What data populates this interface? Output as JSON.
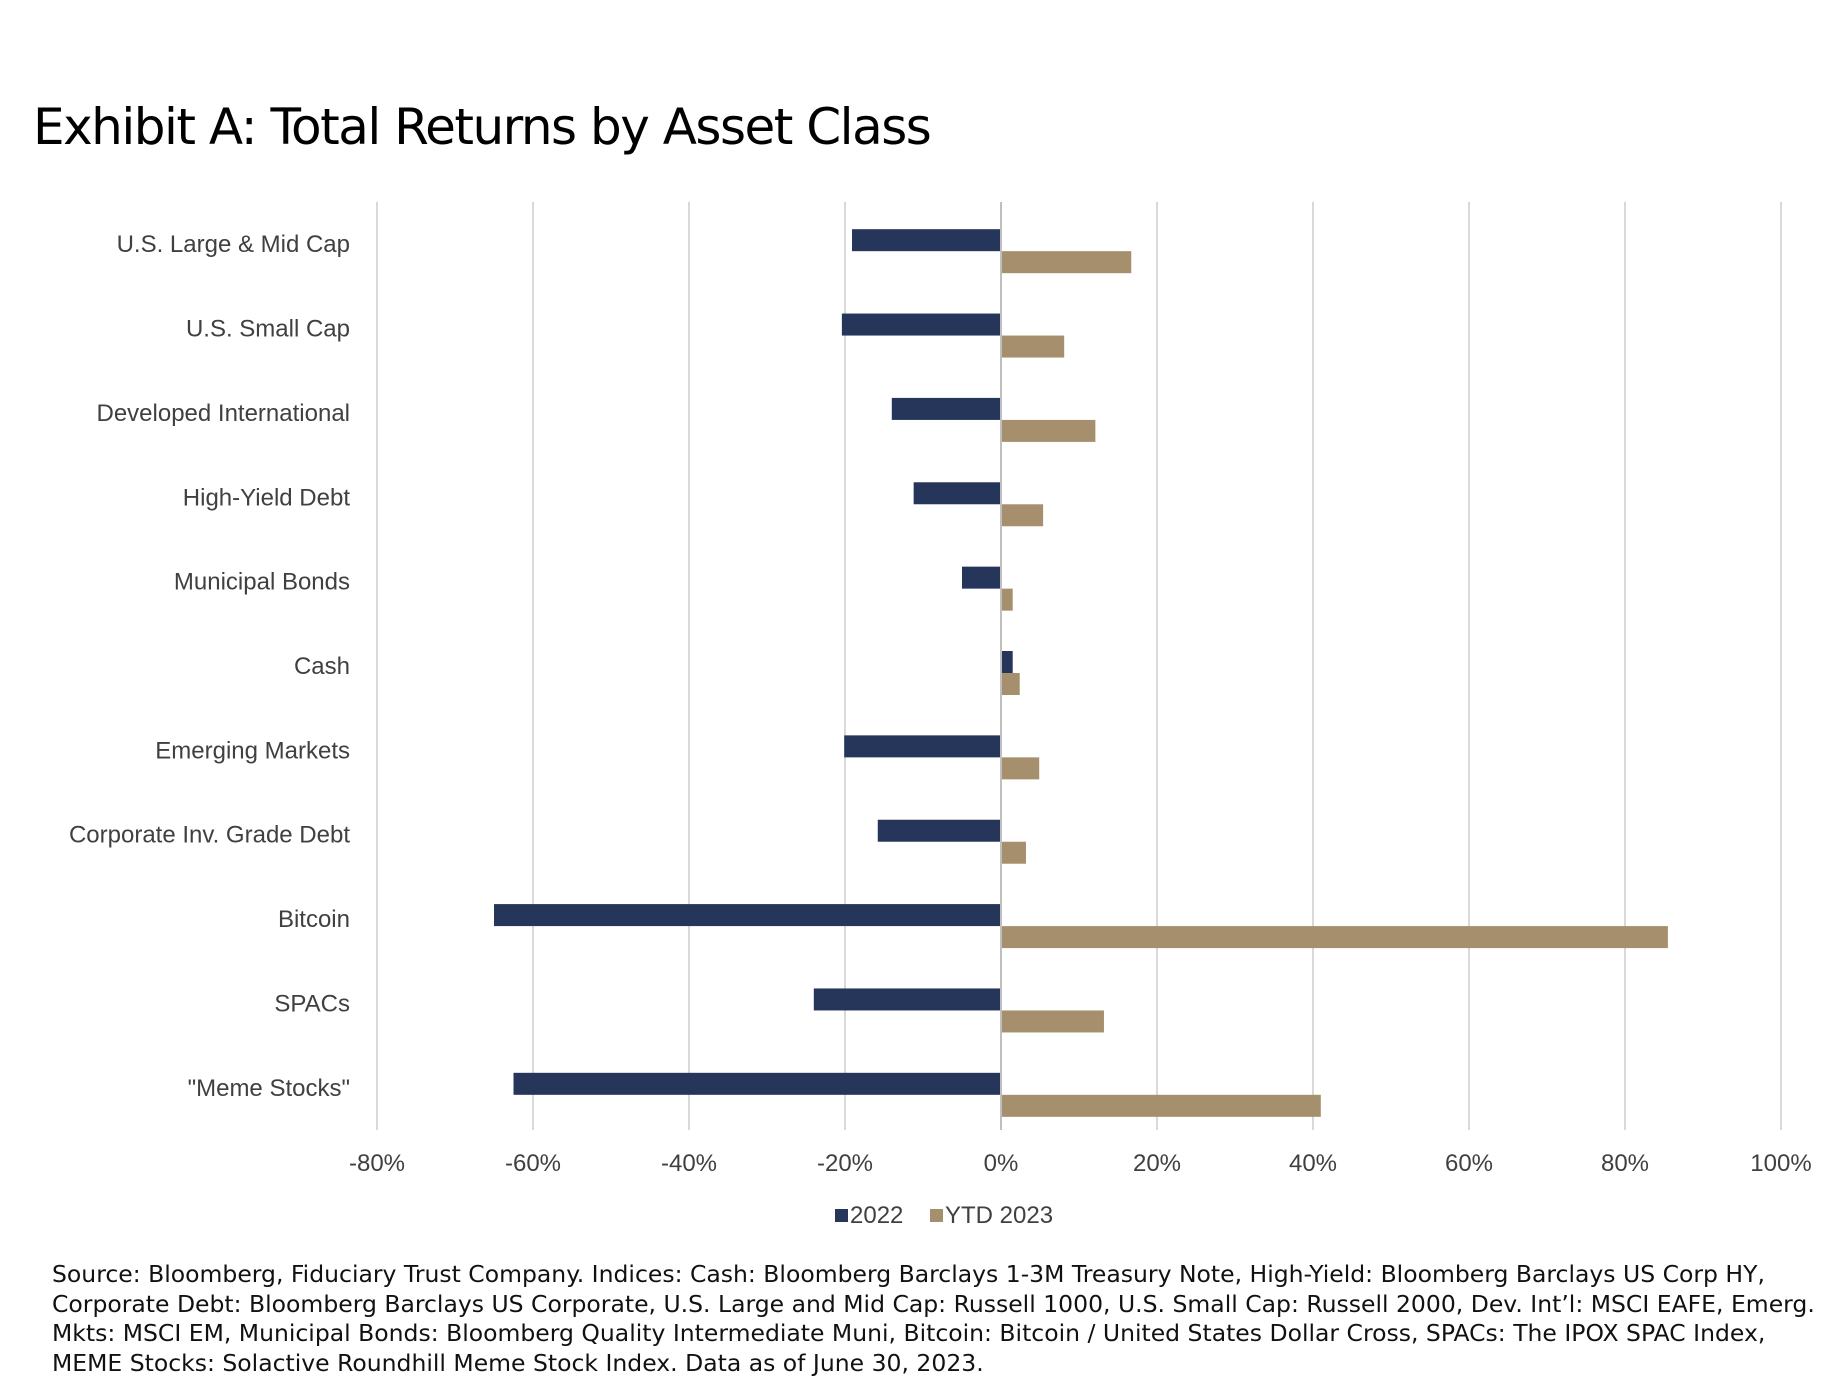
{
  "title": "Exhibit A: Total Returns by Asset Class",
  "source_note": "Source: Bloomberg, Fiduciary Trust Company. Indices: Cash: Bloomberg Barclays 1-3M Treasury Note, High-Yield: Bloomberg Barclays US Corp HY, Corporate Debt: Bloomberg Barclays US Corporate, U.S. Large and Mid Cap: Russell 1000, U.S. Small Cap: Russell 2000, Dev. Int’l: MSCI EAFE, Emerg. Mkts: MSCI EM, Municipal Bonds: Bloomberg Quality Intermediate Muni, Bitcoin: Bitcoin / United States Dollar Cross, SPACs: The IPOX SPAC Index, MEME Stocks: Solactive Roundhill Meme Stock Index. Data as of June 30, 2023.",
  "chart_data": {
    "type": "bar",
    "orientation": "horizontal",
    "categories": [
      "U.S. Large & Mid Cap",
      "U.S. Small Cap",
      "Developed International",
      "High-Yield Debt",
      "Municipal Bonds",
      "Cash",
      "Emerging Markets",
      "Corporate Inv. Grade Debt",
      "Bitcoin",
      "SPACs",
      "\"Meme Stocks\""
    ],
    "series": [
      {
        "name": "2022",
        "color": "#26355a",
        "values": [
          -19.1,
          -20.4,
          -14.0,
          -11.2,
          -5.0,
          1.5,
          -20.1,
          -15.8,
          -65.0,
          -24.0,
          -62.5
        ]
      },
      {
        "name": "YTD 2023",
        "color": "#a68f6c",
        "values": [
          16.7,
          8.1,
          12.1,
          5.4,
          1.5,
          2.4,
          4.9,
          3.2,
          85.5,
          13.2,
          41.0
        ]
      }
    ],
    "xlim": [
      -80,
      100
    ],
    "xticks": [
      -80,
      -60,
      -40,
      -20,
      0,
      20,
      40,
      60,
      80,
      100
    ],
    "tick_labels": [
      "-80%",
      "-60%",
      "-40%",
      "-20%",
      "0%",
      "20%",
      "40%",
      "60%",
      "80%",
      "100%"
    ],
    "grid": true,
    "legend_position": "bottom"
  }
}
